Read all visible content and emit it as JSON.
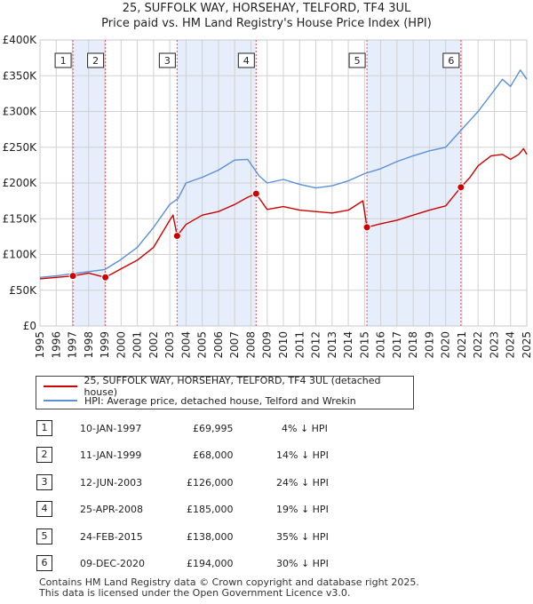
{
  "header": {
    "title": "25, SUFFOLK WAY, HORSEHAY, TELFORD, TF4 3UL",
    "subtitle": "Price paid vs. HM Land Registry's House Price Index (HPI)"
  },
  "legend": {
    "items": [
      {
        "label": "25, SUFFOLK WAY, HORSEHAY, TELFORD, TF4 3UL (detached house)",
        "color": "#cc0000"
      },
      {
        "label": "HPI: Average price, detached house, Telford and Wrekin",
        "color": "#5b8fd6"
      }
    ]
  },
  "sales": [
    {
      "num": "1",
      "date": "10-JAN-1997",
      "price": "£69,995",
      "hpi": "4% ↓ HPI"
    },
    {
      "num": "2",
      "date": "11-JAN-1999",
      "price": "£68,000",
      "hpi": "14% ↓ HPI"
    },
    {
      "num": "3",
      "date": "12-JUN-2003",
      "price": "£126,000",
      "hpi": "24% ↓ HPI"
    },
    {
      "num": "4",
      "date": "25-APR-2008",
      "price": "£185,000",
      "hpi": "19% ↓ HPI"
    },
    {
      "num": "5",
      "date": "24-FEB-2015",
      "price": "£138,000",
      "hpi": "35% ↓ HPI"
    },
    {
      "num": "6",
      "date": "09-DEC-2020",
      "price": "£194,000",
      "hpi": "30% ↓ HPI"
    }
  ],
  "footer": {
    "line1": "Contains HM Land Registry data © Crown copyright and database right 2025.",
    "line2": "This data is licensed under the Open Government Licence v3.0."
  },
  "chart_data": {
    "type": "line",
    "xlim": [
      1995,
      2025
    ],
    "ylim": [
      0,
      400000
    ],
    "y_ticks": [
      0,
      50000,
      100000,
      150000,
      200000,
      250000,
      300000,
      350000,
      400000
    ],
    "y_tick_labels": [
      "£0",
      "£50K",
      "£100K",
      "£150K",
      "£200K",
      "£250K",
      "£300K",
      "£350K",
      "£400K"
    ],
    "x_ticks": [
      1995,
      1996,
      1997,
      1998,
      1999,
      2000,
      2001,
      2002,
      2003,
      2004,
      2005,
      2006,
      2007,
      2008,
      2009,
      2010,
      2011,
      2012,
      2013,
      2014,
      2015,
      2016,
      2017,
      2018,
      2019,
      2020,
      2021,
      2022,
      2023,
      2024,
      2025
    ],
    "x_tick_labels": [
      "1995",
      "1996",
      "1997",
      "1998",
      "1999",
      "2000",
      "2001",
      "2002",
      "2003",
      "2004",
      "2005",
      "2006",
      "2007",
      "2008",
      "2009",
      "2010",
      "2011",
      "2012",
      "2013",
      "2014",
      "2015",
      "2016",
      "2017",
      "2018",
      "2019",
      "2020",
      "2021",
      "2022",
      "2023",
      "2024",
      "2025"
    ],
    "grid": true,
    "shaded_periods": [
      [
        1997.03,
        1999.03
      ],
      [
        2003.45,
        2008.32
      ],
      [
        2015.15,
        2020.94
      ]
    ],
    "series": [
      {
        "name": "25, SUFFOLK WAY, HORSEHAY, TELFORD, TF4 3UL (detached house)",
        "color": "#cc0000",
        "x": [
          1995.0,
          1996.0,
          1997.03,
          1998.0,
          1999.03,
          2000.0,
          2001.0,
          2002.0,
          2003.0,
          2003.2,
          2003.45,
          2004.0,
          2005.0,
          2006.0,
          2007.0,
          2007.8,
          2008.32,
          2009.0,
          2010.0,
          2011.0,
          2012.0,
          2013.0,
          2014.0,
          2014.9,
          2015.15,
          2016.0,
          2017.0,
          2018.0,
          2019.0,
          2020.0,
          2020.94,
          2021.5,
          2022.0,
          2022.8,
          2023.5,
          2024.0,
          2024.5,
          2024.8,
          2025.0
        ],
        "y": [
          66000,
          68000,
          69995,
          74000,
          68000,
          80000,
          92000,
          110000,
          148000,
          155000,
          126000,
          142000,
          155000,
          160000,
          170000,
          180000,
          185000,
          163000,
          167000,
          162000,
          160000,
          158000,
          162000,
          175000,
          138000,
          143000,
          148000,
          155000,
          162000,
          168000,
          194000,
          208000,
          224000,
          238000,
          240000,
          233000,
          240000,
          248000,
          240000
        ]
      },
      {
        "name": "HPI: Average price, detached house, Telford and Wrekin",
        "color": "#5b8fd6",
        "x": [
          1995.0,
          1996.0,
          1997.0,
          1998.0,
          1999.0,
          2000.0,
          2001.0,
          2002.0,
          2003.0,
          2003.5,
          2004.0,
          2005.0,
          2006.0,
          2007.0,
          2007.8,
          2008.5,
          2009.0,
          2010.0,
          2011.0,
          2012.0,
          2013.0,
          2014.0,
          2015.0,
          2016.0,
          2017.0,
          2018.0,
          2019.0,
          2020.0,
          2021.0,
          2022.0,
          2023.0,
          2023.5,
          2024.0,
          2024.6,
          2025.0
        ],
        "y": [
          68000,
          70000,
          73000,
          76000,
          79000,
          93000,
          110000,
          138000,
          170000,
          178000,
          200000,
          208000,
          218000,
          232000,
          233000,
          210000,
          200000,
          205000,
          198000,
          193000,
          196000,
          203000,
          213000,
          220000,
          230000,
          238000,
          245000,
          250000,
          275000,
          300000,
          330000,
          345000,
          335000,
          358000,
          345000
        ]
      }
    ],
    "annotations": [
      {
        "label": "1",
        "x": 1997.03,
        "y": 69995
      },
      {
        "label": "2",
        "x": 1999.03,
        "y": 68000
      },
      {
        "label": "3",
        "x": 2003.45,
        "y": 126000
      },
      {
        "label": "4",
        "x": 2008.32,
        "y": 185000
      },
      {
        "label": "5",
        "x": 2015.15,
        "y": 138000
      },
      {
        "label": "6",
        "x": 2020.94,
        "y": 194000
      }
    ]
  }
}
